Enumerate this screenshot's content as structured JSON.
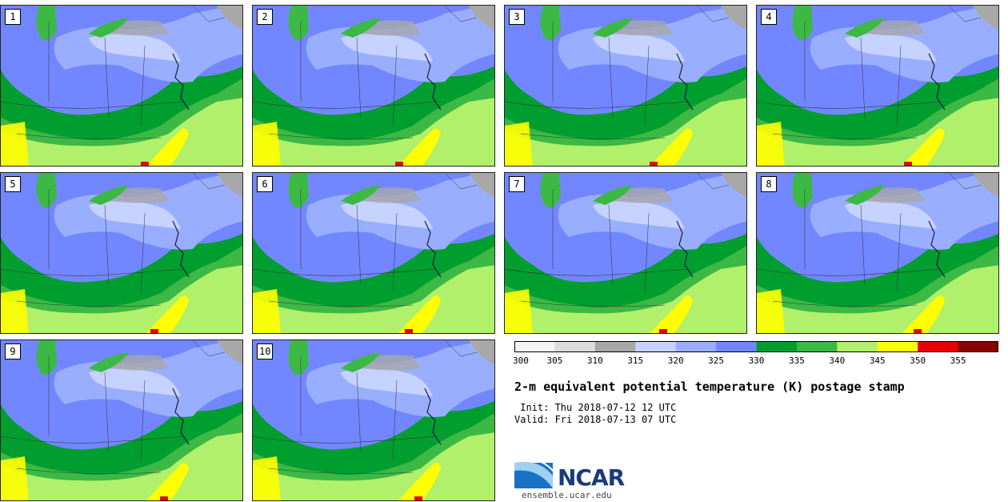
{
  "title": "2-m equivalent potential temperature (K) postage stamp",
  "init": " Init: Thu 2018-07-12 12 UTC",
  "valid": "Valid: Fri 2018-07-13 07 UTC",
  "logo_text": "NCAR",
  "url": "ensemble.ucar.edu",
  "panels": [
    "1",
    "2",
    "3",
    "4",
    "5",
    "6",
    "7",
    "8",
    "9",
    "10"
  ],
  "colorbar": {
    "colors": [
      "#f4f4f4",
      "#dcdcdc",
      "#a8a8a8",
      "#c6d2ff",
      "#9aaeff",
      "#7287ff",
      "#009e2e",
      "#3cb844",
      "#b0f06a",
      "#ffff00",
      "#e60000",
      "#8c0000"
    ],
    "ticks": [
      "300",
      "305",
      "310",
      "315",
      "320",
      "325",
      "330",
      "335",
      "340",
      "345",
      "350",
      "355"
    ]
  },
  "colors": {
    "land_cool_blue": "#7287ff",
    "land_light_blue": "#9aaeff",
    "pale_blue": "#c6d2ff",
    "gray": "#a8a8a8",
    "dark_green": "#009e2e",
    "mid_green": "#3cb844",
    "light_green": "#b0f06a",
    "yellow": "#ffff00",
    "red": "#e60000"
  }
}
